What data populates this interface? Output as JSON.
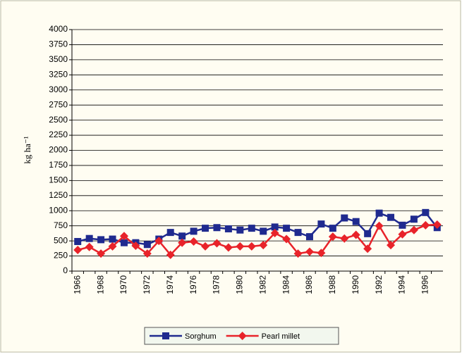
{
  "chart_data": {
    "type": "line",
    "y_label": "kg ha⁻¹",
    "categories": [
      "1966",
      null,
      "1968",
      null,
      "1970",
      null,
      "1972",
      null,
      "1974",
      null,
      "1976",
      null,
      "1978",
      null,
      "1980",
      null,
      "1982",
      null,
      "1984",
      null,
      "1986",
      null,
      "1988",
      null,
      "1990",
      null,
      "1992",
      null,
      "1994",
      null,
      "1996",
      null
    ],
    "series": [
      {
        "name": "Sorghum",
        "color": "#1f2a8f",
        "marker": "square",
        "values": [
          490,
          540,
          520,
          530,
          470,
          470,
          440,
          530,
          640,
          580,
          660,
          710,
          720,
          700,
          680,
          710,
          660,
          730,
          710,
          640,
          570,
          780,
          710,
          880,
          820,
          620,
          960,
          890,
          760,
          860,
          970,
          720
        ]
      },
      {
        "name": "Pearl millet",
        "color": "#e8232a",
        "marker": "diamond",
        "values": [
          350,
          400,
          290,
          410,
          580,
          420,
          290,
          500,
          270,
          470,
          490,
          410,
          460,
          390,
          410,
          410,
          430,
          630,
          530,
          290,
          320,
          300,
          570,
          540,
          600,
          370,
          750,
          430,
          610,
          680,
          760,
          770
        ]
      }
    ],
    "ylim": [
      0,
      4000
    ],
    "yticks": [
      0,
      250,
      500,
      750,
      1000,
      1250,
      1500,
      1750,
      2000,
      2250,
      2500,
      2750,
      3000,
      3250,
      3500,
      3750,
      4000
    ],
    "grid": true,
    "legend": "bottom"
  }
}
